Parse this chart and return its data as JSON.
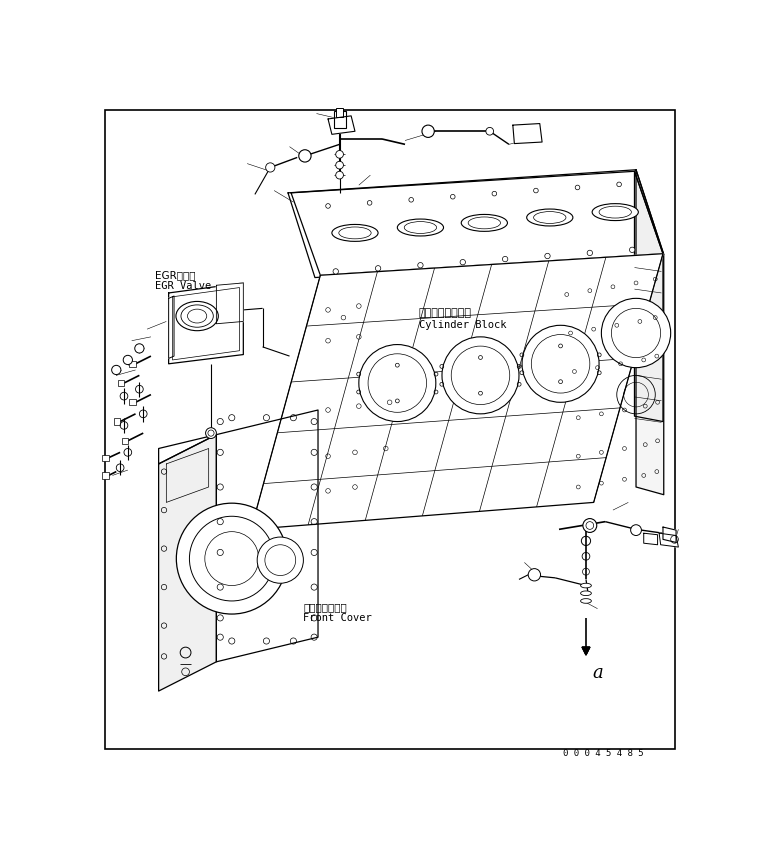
{
  "figure_width": 7.61,
  "figure_height": 8.5,
  "dpi": 100,
  "bg_color": "#ffffff",
  "line_color": "#000000",
  "label_egr_jp": "EGRバルブ",
  "label_egr_en": "EGR Valve",
  "label_cylinder_jp": "シリンダブロック",
  "label_cylinder_en": "Cylinder Block",
  "label_front_jp": "フロントカバー",
  "label_front_en": "Front Cover",
  "label_a": "a",
  "part_number": "0 0 0 4 5 4 8 5"
}
